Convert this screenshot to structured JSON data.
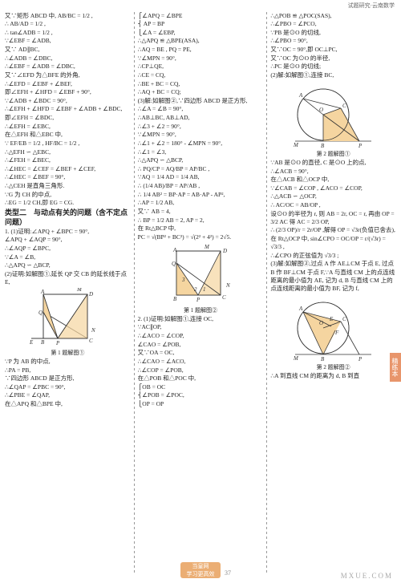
{
  "header": "试题研究·云南数学",
  "tab_label": "精练本",
  "pagenum": "37",
  "stamp_line1": "当皇网",
  "stamp_line2": "学习更高效",
  "watermark": "MXUE.COM",
  "col1": {
    "lines": [
      "又∵矩形 ABCD 中, AB/BC = 1/2 ,",
      "∴ AB/AD = 1/2 ,",
      "∴ tan∠ADB = 1/2 ,",
      "∵∠EBF = ∠ADB,",
      "又∵ AD∥BC,",
      "∴∠ADB = ∠DBC,",
      "∴∠EBF = ∠ADB = ∠DBC,",
      "又∵∠EFD 为△BFE 的外角,",
      "∴∠EFD = ∠EBF + ∠BEF,",
      "即∠EFH + ∠HFD = ∠EBF + 90°,",
      "∵∠ADB + ∠BDC = 90°,",
      "∴∠EFH + ∠HFD = ∠EBF + ∠ADB + ∠BDC,",
      "即∠EFH = ∠BDC,",
      "∴∠EFH = ∠EBC,",
      "在△EFH 和△EBC 中,",
      "∵ EF/EB = 1/2 , HF/BC = 1/2 ,",
      "∴△EFH ∽ △EBC,",
      "∴∠FEH = ∠BEC,",
      "∴∠HEC = ∠CEF = ∠BEF + ∠CEF,",
      "∴∠HEC = ∠BEF = 90°,",
      "∴△CEH 是直角三角形.",
      "∵G 为 CH 的中点,",
      "∴EG = 1/2 CH,即 EG = CG."
    ],
    "section_title": "类型二　与动点有关的问题（含不定点问题）",
    "lines2": [
      "1. (1)证明:∠APQ + ∠BPC = 90°,",
      "∠APQ + ∠AQP = 90°,",
      "∴∠AQP = ∠BPC,",
      "∵∠A = ∠B,",
      "∴△APQ ∽ △BCP,",
      "(2)证明:如解图①,延长 QP 交 CB 的延长线于点 E,"
    ],
    "caption1": "第 1 题解图①",
    "lines3": [
      "∵P 为 AB 的中点,",
      "∴PA = PB,",
      "∵四边形 ABCD 是正方形,",
      "∴∠QAP = ∠PBC = 90°,",
      "∴∠PBE = ∠QAP,",
      "在△APQ 和△BPE 中,"
    ]
  },
  "col2": {
    "lines": [
      "⎧∠APQ = ∠BPE",
      "⎨ AP = BP",
      "⎩∠A = ∠EBP,",
      "∴△APQ ≌ △BPE(ASA),",
      "∴AQ = BE , PQ = PE,",
      "∵∠MPN = 90°,",
      "∴CP⊥QE,",
      "∴CE = CQ,",
      "∴BE + BC = CQ,",
      "∴AQ + BC = CQ;",
      "(3)解:如解图②,∵四边形 ABCD 是正方形,",
      "∴∠A = ∠B = 90°,",
      "∴AB⊥BC, AB⊥AD,",
      "∴∠3 + ∠2 = 90°,",
      "∵∠MPN = 90°,",
      "∴∠1 + ∠2 = 180° - ∠MPN = 90°,",
      "∴∠1 = ∠3,",
      "∴△APQ ∽ △BCP,",
      "∴ PQ/CP = AQ/BP = AP/BC ,",
      "∵AQ = 1/4 AD = 1/4 AB,",
      "∴ (1/4 AB)/BP = AP/AB ,",
      "∴ 1/4 AB² = BP·AP = AB·AP - AP²,",
      "∴AP = 1/2 AB,",
      "又∵ AB = 4,",
      "∴ BP = 1/2 AB = 2, AP = 2,",
      "在 Rt△BCP 中,",
      "PC = √(BP² + BC²) = √(2² + 4²) = 2√5."
    ],
    "caption2": "第 1 题解图②",
    "lines2": [
      "2. (1)证明:如解图①,连接 OC,",
      "∵AC∥OP,",
      "∴∠ACO = ∠COP,",
      "∠CAO = ∠POB,",
      "又∵OA = OC,",
      "∴∠CAO = ∠ACO,",
      "∴∠COP = ∠POB,",
      "在△POB 和△POC 中,",
      "⎧OB = OC",
      "⎨∠POB = ∠POC,",
      "⎩OP = OP"
    ]
  },
  "col3": {
    "lines": [
      "∴△POB ≌ △POC(SAS),",
      "∴∠PBO = ∠PCO,",
      "∵PB 是⊙O 的切线,",
      "∴∠PBO = 90°,",
      "又∵OC = 90°,即 OC⊥PC,",
      "又∵OC 为⊙O 的半径,",
      "∴PC 是⊙O 的切线;",
      "(2)解:如解图①,连接 BC,"
    ],
    "caption3": "第 2 题解图①",
    "lines2": [
      "∵AB 是⊙O 的直径, C 是⊙O 上的点,",
      "∴∠ACB = 90°,",
      "在△ACB 和△OCP 中,",
      "∵∠CAB = ∠COP , ∠ACO = ∠COP,",
      "∴△ACB ∽ △OCP,",
      "∴ AC/OC = AB/OP ,",
      "设⊙O 的半径为 r, 则 AB = 2r, OC = r, 再由 OP = 3/2 AC 得 AC = 2/3 OP,",
      "∴ (2/3 OP)/r = 2r/OP ,解得 OP = √3r(负值已舍去),",
      "在 Rt△OCP 中, sin∠CPO = OC/OP = r/(√3r) = √3/3 ,",
      "∴∠CPO 的正弦值为 √3/3 ;",
      "(3)解:如解图②,过点 A 作 AE⊥CM 于点 E, 过点 B 作 BF⊥CM 于点 F,∵A 与直线 CM 上的点连线距离的最小值为 AE, 记为 d, B 与直线 CM 上的点连线距离的最小值为 BF, 记为 f,"
    ],
    "caption4": "第 2 题解图②",
    "lines3": [
      "∴A 到直线 CM 的距离为 d, B 到直"
    ]
  }
}
